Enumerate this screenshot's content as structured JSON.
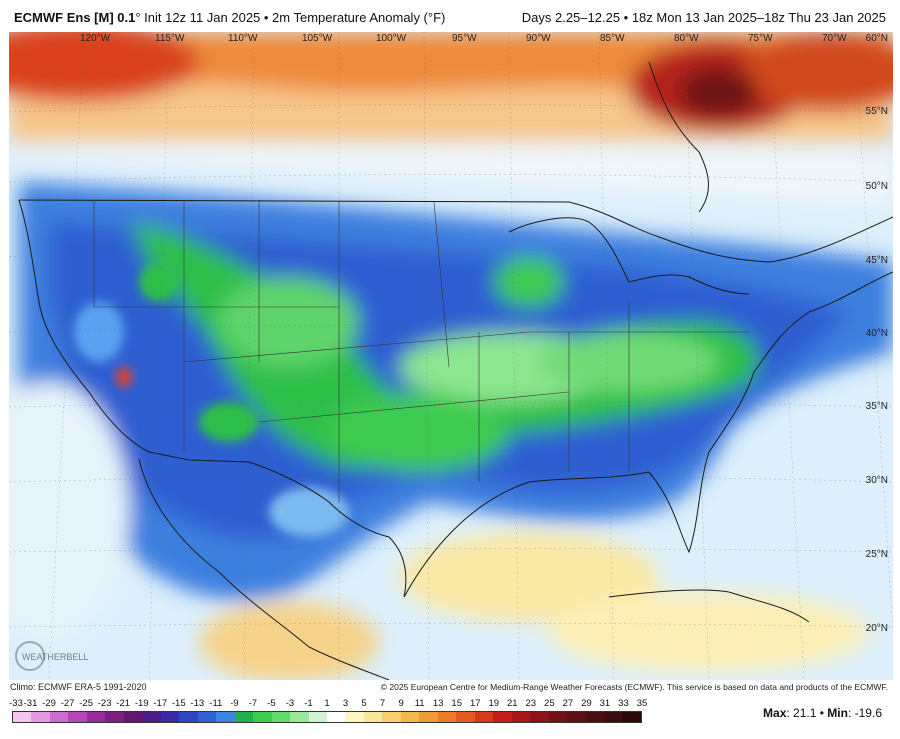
{
  "header": {
    "model": "ECMWF Ens [M] 0.1",
    "degree": "°",
    "init": " Init 12z 11 Jan 2025 • 2m Temperature Anomaly (°F)",
    "range": "Days 2.25–12.25 • 18z Mon 13 Jan 2025–18z Thu 23 Jan 2025"
  },
  "map": {
    "lon_labels": [
      "120°W",
      "115°W",
      "110°W",
      "105°W",
      "100°W",
      "95°W",
      "90°W",
      "85°W",
      "80°W",
      "75°W",
      "70°W"
    ],
    "lat_labels": [
      "60°N",
      "55°N",
      "50°N",
      "45°N",
      "40°N",
      "35°N",
      "30°N",
      "25°N",
      "20°N"
    ]
  },
  "footer": {
    "climo": "Climo: ECMWF ERA-5 1991-2020",
    "copyright": "© 2025 European Centre for Medium-Range Weather Forecasts (ECMWF). This service is based on data and products of the ECMWF.",
    "logo_text": "WEATHERBELL"
  },
  "colorbar": {
    "ticks": [
      "-33",
      "-31",
      "-29",
      "-27",
      "-25",
      "-23",
      "-21",
      "-19",
      "-17",
      "-15",
      "-13",
      "-11",
      "-9",
      "-7",
      "-5",
      "-3",
      "-1",
      "1",
      "3",
      "5",
      "7",
      "9",
      "11",
      "13",
      "15",
      "17",
      "19",
      "21",
      "23",
      "25",
      "27",
      "29",
      "31",
      "33",
      "35"
    ],
    "colors": [
      "#f3c6ee",
      "#e59ae0",
      "#cf6cd0",
      "#b844b9",
      "#9a2b9d",
      "#7b1f82",
      "#5e1a6c",
      "#4b1d8c",
      "#3a2ba6",
      "#2e46c0",
      "#2f63d4",
      "#3a86e2",
      "#22b14c",
      "#3ecb4f",
      "#64dc6a",
      "#9ae89a",
      "#d2f3d2",
      "#ffffff",
      "#fdf7c3",
      "#f8e79a",
      "#f6d26f",
      "#f4b74e",
      "#f19a38",
      "#ec7b28",
      "#e45a1f",
      "#d63a1b",
      "#c31e1a",
      "#a8151b",
      "#8d121c",
      "#731118",
      "#5c1014",
      "#471011",
      "#3a0d0e",
      "#2d0a0a"
    ]
  },
  "stats": {
    "max_label": "Max",
    "max": ": 21.1",
    "min_label": "Min",
    "min": ": -19.6"
  }
}
